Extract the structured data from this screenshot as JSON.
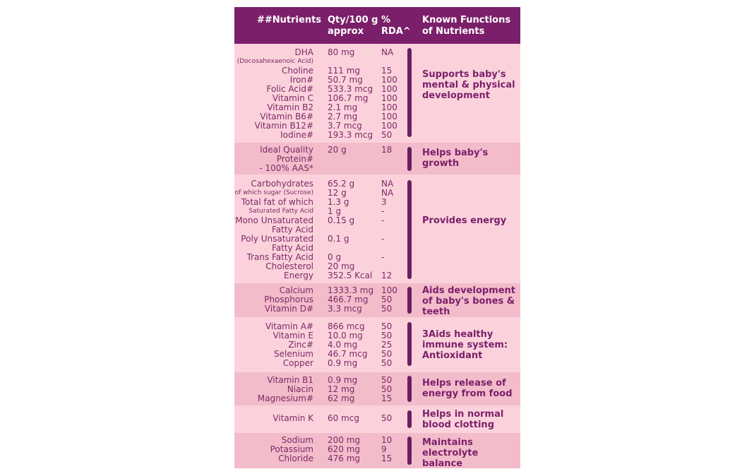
{
  "header": {
    "nutrients": "##Nutrients",
    "qty_line1": "Qty/100 g",
    "qty_line2": "approx",
    "rda_line1": "%",
    "rda_line2": "RDA^",
    "functions_line1": "Known Functions",
    "functions_line2": "of Nutrients"
  },
  "groups": [
    {
      "function": "Supports baby's mental & physical development",
      "rows": [
        {
          "name": "DHA",
          "qty": "80 mg",
          "rda": "NA"
        },
        {
          "name": "(Docosahexaenoic Acid)",
          "qty": "",
          "rda": ""
        },
        {
          "name": "Choline",
          "qty": "111 mg",
          "rda": "15"
        },
        {
          "name": "Iron#",
          "qty": "50.7 mg",
          "rda": "100"
        },
        {
          "name": "Folic Acid#",
          "qty": "533.3 mcg",
          "rda": "100"
        },
        {
          "name": "Vitamin C",
          "qty": "106.7 mg",
          "rda": "100"
        },
        {
          "name": "Vitamin B2",
          "qty": "2.1 mg",
          "rda": "100"
        },
        {
          "name": "Vitamin B6#",
          "qty": "2.7 mg",
          "rda": "100"
        },
        {
          "name": "Vitamin B12#",
          "qty": "3.7 mcg",
          "rda": "100"
        },
        {
          "name": "Iodine#",
          "qty": "193.3 mcg",
          "rda": "50"
        }
      ]
    },
    {
      "function": "Helps baby's growth",
      "rows": [
        {
          "name": "Ideal Quality",
          "qty": "20 g",
          "rda": "18"
        },
        {
          "name": "Protein#",
          "qty": "",
          "rda": ""
        },
        {
          "name": "- 100% AAS*",
          "qty": "",
          "rda": ""
        }
      ]
    },
    {
      "function": "Provides energy",
      "rows": [
        {
          "name": "Carbohydrates",
          "qty": "65.2 g",
          "rda": "NA"
        },
        {
          "name": "of which sugar (Sucrose)",
          "qty": "12 g",
          "rda": "NA"
        },
        {
          "name": "Total fat of which",
          "qty": "1.3 g",
          "rda": "3"
        },
        {
          "name": "Saturated Fatty Acid",
          "qty": "1 g",
          "rda": "-"
        },
        {
          "name": "Mono Unsaturated",
          "qty": "0.15 g",
          "rda": "-"
        },
        {
          "name": "Fatty Acid",
          "qty": "",
          "rda": ""
        },
        {
          "name": "Poly Unsaturated",
          "qty": "0.1 g",
          "rda": "-"
        },
        {
          "name": "Fatty Acid",
          "qty": "",
          "rda": ""
        },
        {
          "name": "Trans Fatty Acid",
          "qty": "0 g",
          "rda": "-"
        },
        {
          "name": "Cholesterol",
          "qty": "20 mg",
          "rda": ""
        },
        {
          "name": "Energy",
          "qty": "352.5 Kcal",
          "rda": "12"
        }
      ]
    },
    {
      "function": "Aids development of baby's bones & teeth",
      "rows": [
        {
          "name": "Calcium",
          "qty": "1333.3 mg",
          "rda": "100"
        },
        {
          "name": "Phosphorus",
          "qty": "466.7 mg",
          "rda": "50"
        },
        {
          "name": "Vitamin D#",
          "qty": "3.3 mcg",
          "rda": "50"
        }
      ]
    },
    {
      "function": "3Aids healthy immune system: Antioxidant",
      "rows": [
        {
          "name": "Vitamin A#",
          "qty": "866 mcg",
          "rda": "50"
        },
        {
          "name": "Vitamin E",
          "qty": "10.0 mg",
          "rda": "50"
        },
        {
          "name": "Zinc#",
          "qty": "4.0 mg",
          "rda": "25"
        },
        {
          "name": "Selenium",
          "qty": "46.7 mcg",
          "rda": "50"
        },
        {
          "name": "Copper",
          "qty": "0.9 mg",
          "rda": "50"
        }
      ]
    },
    {
      "function": "Helps release of energy from food",
      "rows": [
        {
          "name": "Vitamin B1",
          "qty": "0.9 mg",
          "rda": "50"
        },
        {
          "name": "Niacin",
          "qty": "12 mg",
          "rda": "50"
        },
        {
          "name": "Magnesium#",
          "qty": "62 mg",
          "rda": "15"
        }
      ]
    },
    {
      "function": "Helps in normal blood clotting",
      "rows": [
        {
          "name": "Vitamin K",
          "qty": "60 mcg",
          "rda": "50"
        }
      ]
    },
    {
      "function": "Maintains electrolyte balance",
      "rows": [
        {
          "name": "Sodium",
          "qty": "200 mg",
          "rda": "10"
        },
        {
          "name": "Potassium",
          "qty": "620 mg",
          "rda": "9"
        },
        {
          "name": "Chloride",
          "qty": "476 mg",
          "rda": "15"
        }
      ]
    }
  ]
}
